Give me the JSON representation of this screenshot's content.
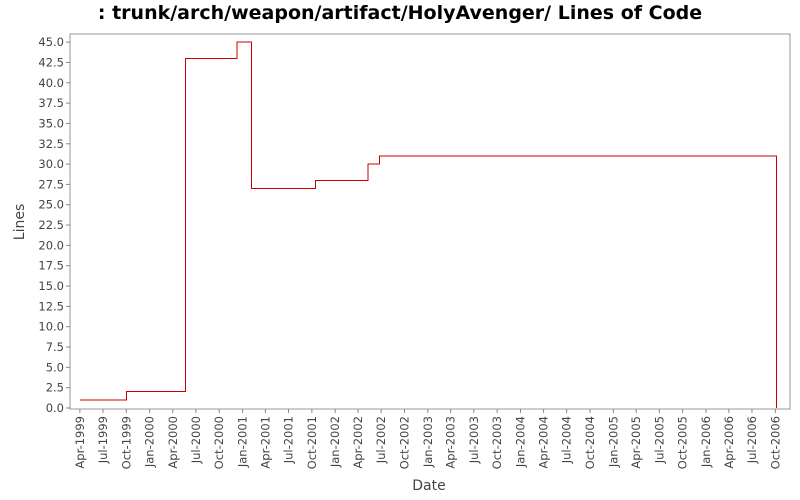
{
  "chart_data": {
    "type": "line",
    "title": ": trunk/arch/weapon/artifact/HolyAvenger/ Lines of Code",
    "xlabel": "Date",
    "ylabel": "Lines",
    "step": true,
    "grid": false,
    "ylim": [
      0,
      46
    ],
    "xlim": [
      "1999-03-01",
      "2006-11-20"
    ],
    "yticks": [
      "0.0",
      "2.5",
      "5.0",
      "7.5",
      "10.0",
      "12.5",
      "15.0",
      "17.5",
      "20.0",
      "22.5",
      "25.0",
      "27.5",
      "30.0",
      "32.5",
      "35.0",
      "37.5",
      "40.0",
      "42.5",
      "45.0"
    ],
    "xticks": [
      {
        "label": "Apr-1999",
        "date": "1999-04-01"
      },
      {
        "label": "Jul-1999",
        "date": "1999-07-01"
      },
      {
        "label": "Oct-1999",
        "date": "1999-10-01"
      },
      {
        "label": "Jan-2000",
        "date": "2000-01-01"
      },
      {
        "label": "Apr-2000",
        "date": "2000-04-01"
      },
      {
        "label": "Jul-2000",
        "date": "2000-07-01"
      },
      {
        "label": "Oct-2000",
        "date": "2000-10-01"
      },
      {
        "label": "Jan-2001",
        "date": "2001-01-01"
      },
      {
        "label": "Apr-2001",
        "date": "2001-04-01"
      },
      {
        "label": "Jul-2001",
        "date": "2001-07-01"
      },
      {
        "label": "Oct-2001",
        "date": "2001-10-01"
      },
      {
        "label": "Jan-2002",
        "date": "2002-01-01"
      },
      {
        "label": "Apr-2002",
        "date": "2002-04-01"
      },
      {
        "label": "Jul-2002",
        "date": "2002-07-01"
      },
      {
        "label": "Oct-2002",
        "date": "2002-10-01"
      },
      {
        "label": "Jan-2003",
        "date": "2003-01-01"
      },
      {
        "label": "Apr-2003",
        "date": "2003-04-01"
      },
      {
        "label": "Jul-2003",
        "date": "2003-07-01"
      },
      {
        "label": "Oct-2003",
        "date": "2003-10-01"
      },
      {
        "label": "Jan-2004",
        "date": "2004-01-01"
      },
      {
        "label": "Apr-2004",
        "date": "2004-04-01"
      },
      {
        "label": "Jul-2004",
        "date": "2004-07-01"
      },
      {
        "label": "Oct-2004",
        "date": "2004-10-01"
      },
      {
        "label": "Jan-2005",
        "date": "2005-01-01"
      },
      {
        "label": "Apr-2005",
        "date": "2005-04-01"
      },
      {
        "label": "Jul-2005",
        "date": "2005-07-01"
      },
      {
        "label": "Oct-2005",
        "date": "2005-10-01"
      },
      {
        "label": "Jan-2006",
        "date": "2006-01-01"
      },
      {
        "label": "Apr-2006",
        "date": "2006-04-01"
      },
      {
        "label": "Jul-2006",
        "date": "2006-07-01"
      },
      {
        "label": "Oct-2006",
        "date": "2006-10-01"
      }
    ],
    "series": [
      {
        "color": "#cc0000",
        "points": [
          {
            "x": "1999-04-01",
            "y": 1
          },
          {
            "x": "1999-10-01",
            "y": 2
          },
          {
            "x": "2000-05-21",
            "y": 43
          },
          {
            "x": "2000-12-10",
            "y": 45
          },
          {
            "x": "2001-02-05",
            "y": 27
          },
          {
            "x": "2001-10-15",
            "y": 28
          },
          {
            "x": "2002-05-10",
            "y": 30
          },
          {
            "x": "2002-06-25",
            "y": 31
          },
          {
            "x": "2006-10-05",
            "y": 0
          }
        ]
      }
    ]
  }
}
